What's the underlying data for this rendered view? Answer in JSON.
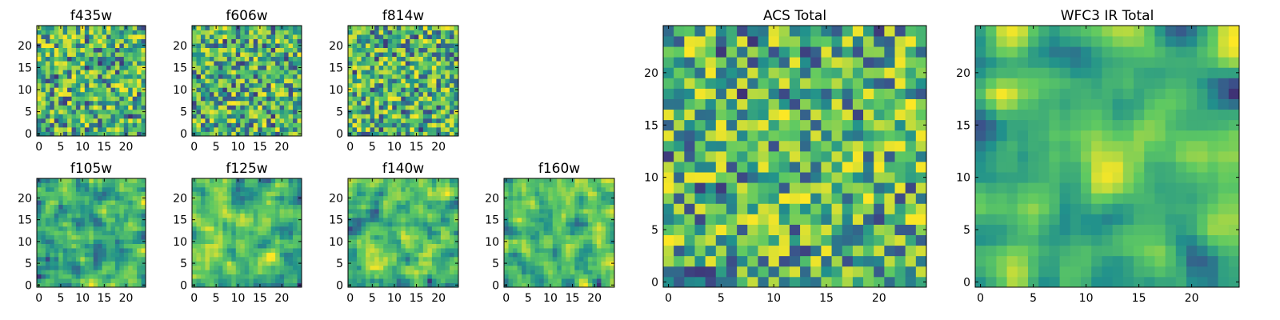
{
  "figure": {
    "colormap": [
      "#440154",
      "#3b528b",
      "#21918c",
      "#5ec962",
      "#fde725"
    ]
  },
  "chart_data": [
    {
      "type": "heatmap",
      "title": "f435w",
      "xlim": [
        -0.5,
        24.5
      ],
      "ylim": [
        -0.5,
        24.5
      ],
      "xticks": [
        0,
        5,
        10,
        15,
        20
      ],
      "yticks": [
        0,
        5,
        10,
        15,
        20
      ],
      "grid": false,
      "grid_size": 25,
      "smoothness": 0,
      "seed": 11
    },
    {
      "type": "heatmap",
      "title": "f606w",
      "xlim": [
        -0.5,
        24.5
      ],
      "ylim": [
        -0.5,
        24.5
      ],
      "xticks": [
        0,
        5,
        10,
        15,
        20
      ],
      "yticks": [
        0,
        5,
        10,
        15,
        20
      ],
      "grid": false,
      "grid_size": 25,
      "smoothness": 0,
      "seed": 23
    },
    {
      "type": "heatmap",
      "title": "f814w",
      "xlim": [
        -0.5,
        24.5
      ],
      "ylim": [
        -0.5,
        24.5
      ],
      "xticks": [
        0,
        5,
        10,
        15,
        20
      ],
      "yticks": [
        0,
        5,
        10,
        15,
        20
      ],
      "grid": false,
      "grid_size": 25,
      "smoothness": 0,
      "seed": 37
    },
    {
      "type": "heatmap",
      "title": "f105w",
      "xlim": [
        -0.5,
        24.5
      ],
      "ylim": [
        -0.5,
        24.5
      ],
      "xticks": [
        0,
        5,
        10,
        15,
        20
      ],
      "yticks": [
        0,
        5,
        10,
        15,
        20
      ],
      "grid": false,
      "grid_size": 25,
      "smoothness": 1,
      "seed": 41
    },
    {
      "type": "heatmap",
      "title": "f125w",
      "xlim": [
        -0.5,
        24.5
      ],
      "ylim": [
        -0.5,
        24.5
      ],
      "xticks": [
        0,
        5,
        10,
        15,
        20
      ],
      "yticks": [
        0,
        5,
        10,
        15,
        20
      ],
      "grid": false,
      "grid_size": 25,
      "smoothness": 1,
      "seed": 53
    },
    {
      "type": "heatmap",
      "title": "f140w",
      "xlim": [
        -0.5,
        24.5
      ],
      "ylim": [
        -0.5,
        24.5
      ],
      "xticks": [
        0,
        5,
        10,
        15,
        20
      ],
      "yticks": [
        0,
        5,
        10,
        15,
        20
      ],
      "grid": false,
      "grid_size": 25,
      "smoothness": 1,
      "seed": 67
    },
    {
      "type": "heatmap",
      "title": "f160w",
      "xlim": [
        -0.5,
        24.5
      ],
      "ylim": [
        -0.5,
        24.5
      ],
      "xticks": [
        0,
        5,
        10,
        15,
        20
      ],
      "yticks": [
        0,
        5,
        10,
        15,
        20
      ],
      "grid": false,
      "grid_size": 25,
      "smoothness": 1,
      "seed": 79
    },
    {
      "type": "heatmap",
      "title": "ACS Total",
      "xlim": [
        -0.5,
        24.5
      ],
      "ylim": [
        -0.5,
        24.5
      ],
      "xticks": [
        0,
        5,
        10,
        15,
        20
      ],
      "yticks": [
        0,
        5,
        10,
        15,
        20
      ],
      "grid": false,
      "grid_size": 25,
      "smoothness": 0,
      "seed": 97
    },
    {
      "type": "heatmap",
      "title": "WFC3 IR Total",
      "xlim": [
        -0.5,
        24.5
      ],
      "ylim": [
        -0.5,
        24.5
      ],
      "xticks": [
        0,
        5,
        10,
        15,
        20
      ],
      "yticks": [
        0,
        5,
        10,
        15,
        20
      ],
      "grid": false,
      "grid_size": 25,
      "smoothness": 2,
      "seed": 113,
      "bright_regions": [
        {
          "x": 12.5,
          "y": 11,
          "r": 3.5
        },
        {
          "x": 1.5,
          "y": 18,
          "r": 2.5
        }
      ]
    }
  ]
}
